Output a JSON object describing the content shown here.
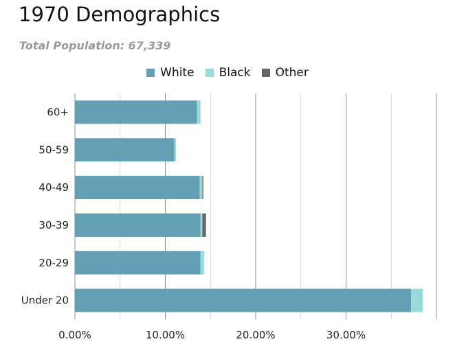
{
  "chart_data": {
    "type": "bar",
    "orientation": "horizontal",
    "stacked": true,
    "title": "1970 Demographics",
    "subtitle": "Total Population: 67,339",
    "categories": [
      "60+",
      "50-59",
      "40-49",
      "30-39",
      "20-29",
      "Under 20"
    ],
    "series": [
      {
        "name": "White",
        "color": "#64a0b4",
        "values": [
          13.5,
          11.0,
          13.8,
          13.9,
          13.9,
          37.2
        ]
      },
      {
        "name": "Black",
        "color": "#97dbdb",
        "values": [
          0.4,
          0.2,
          0.3,
          0.2,
          0.4,
          1.3
        ]
      },
      {
        "name": "Other",
        "color": "#666666",
        "values": [
          0.0,
          0.0,
          0.1,
          0.4,
          0.0,
          0.0
        ]
      }
    ],
    "xlim": [
      0,
      40
    ],
    "x_ticks": [
      0,
      10,
      20,
      30
    ],
    "x_tick_labels": [
      "0.00%",
      "10.00%",
      "20.00%",
      "30.00%"
    ],
    "xlabel": "",
    "ylabel": "",
    "grid": true,
    "legend_position": "top-center"
  }
}
